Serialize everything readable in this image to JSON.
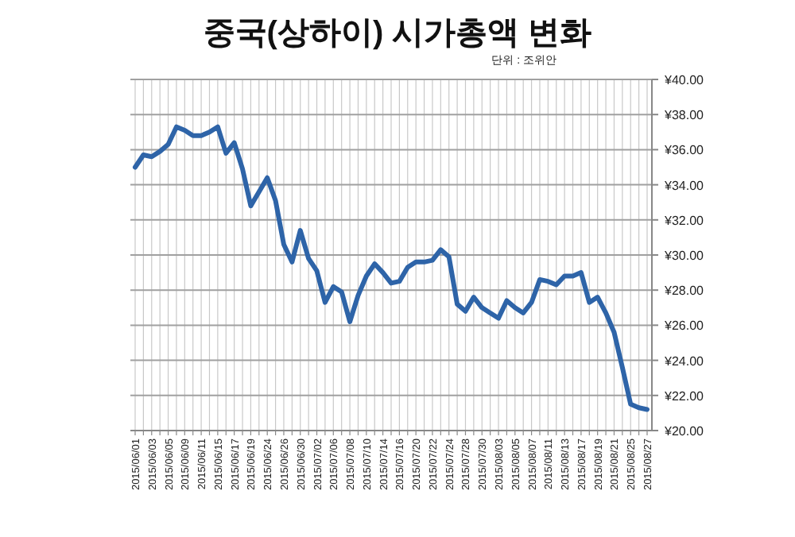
{
  "chart_data": {
    "type": "line",
    "title": "중국(상하이) 시가총액 변화",
    "annotations": [
      "단위 : 조위안"
    ],
    "categories": [
      "2015/06/01",
      null,
      "2015/06/03",
      null,
      "2015/06/05",
      null,
      "2015/06/09",
      null,
      "2015/06/11",
      null,
      "2015/06/15",
      null,
      "2015/06/17",
      null,
      "2015/06/19",
      null,
      "2015/06/24",
      null,
      "2015/06/26",
      null,
      "2015/06/30",
      null,
      "2015/07/02",
      null,
      "2015/07/06",
      null,
      "2015/07/08",
      null,
      "2015/07/10",
      null,
      "2015/07/14",
      null,
      "2015/07/16",
      null,
      "2015/07/20",
      null,
      "2015/07/22",
      null,
      "2015/07/24",
      null,
      "2015/07/28",
      null,
      "2015/07/30",
      null,
      "2015/08/03",
      null,
      "2015/08/05",
      null,
      "2015/08/07",
      null,
      "2015/08/11",
      null,
      "2015/08/13",
      null,
      "2015/08/17",
      null,
      "2015/08/19",
      null,
      "2015/08/21",
      null,
      "2015/08/25",
      null,
      "2015/08/27"
    ],
    "series": [
      {
        "color": "#2e64a8",
        "values": [
          35.0,
          35.7,
          35.6,
          35.9,
          36.3,
          37.3,
          37.1,
          36.8,
          36.8,
          37.0,
          37.3,
          35.8,
          36.4,
          34.9,
          32.8,
          33.6,
          34.4,
          33.1,
          30.6,
          29.6,
          31.4,
          29.8,
          29.1,
          27.3,
          28.2,
          27.9,
          26.2,
          27.7,
          28.8,
          29.5,
          29.0,
          28.4,
          28.5,
          29.3,
          29.6,
          29.6,
          29.7,
          30.3,
          29.9,
          27.2,
          26.8,
          27.6,
          27.0,
          26.7,
          26.4,
          27.4,
          27.0,
          26.7,
          27.3,
          28.6,
          28.5,
          28.3,
          28.8,
          28.8,
          29.0,
          27.3,
          27.6,
          26.7,
          25.6,
          23.6,
          21.5,
          21.3,
          21.2
        ]
      }
    ],
    "ylim": [
      20,
      40
    ],
    "yticks": [
      {
        "value": 20,
        "label": "¥20.00"
      },
      {
        "value": 22,
        "label": "¥22.00"
      },
      {
        "value": 24,
        "label": "¥24.00"
      },
      {
        "value": 26,
        "label": "¥26.00"
      },
      {
        "value": 28,
        "label": "¥28.00"
      },
      {
        "value": 30,
        "label": "¥30.00"
      },
      {
        "value": 32,
        "label": "¥32.00"
      },
      {
        "value": 34,
        "label": "¥34.00"
      },
      {
        "value": 36,
        "label": "¥36.00"
      },
      {
        "value": 38,
        "label": "¥38.00"
      },
      {
        "value": 40,
        "label": "¥40.00"
      }
    ],
    "grid": true,
    "marker": "none",
    "line_style": "solid"
  }
}
